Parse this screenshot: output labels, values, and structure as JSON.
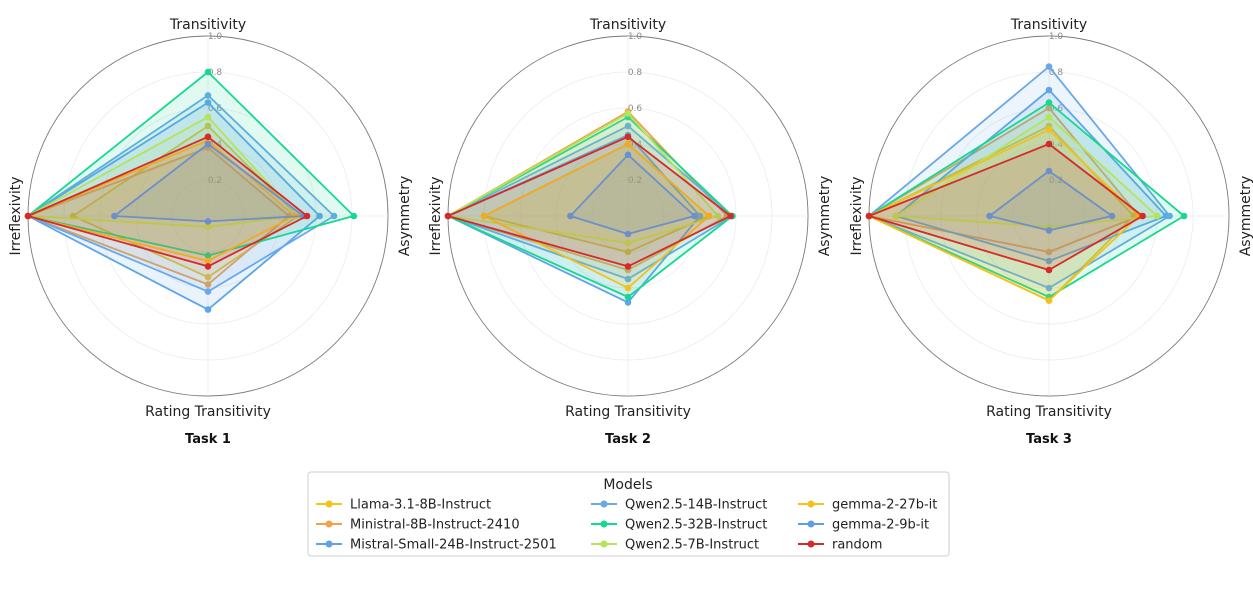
{
  "chart_data": {
    "type": "radar",
    "axes": [
      "Transitivity",
      "Asymmetry",
      "Rating Transitivity",
      "Irreflexivity"
    ],
    "rlim": [
      0,
      1.0
    ],
    "rticks": [
      "0.2",
      "0.4",
      "0.6",
      "0.8",
      "1.0"
    ],
    "legend_title": "Models",
    "models": [
      {
        "name": "Llama-3.1-8B-Instruct",
        "color": "#F0C419"
      },
      {
        "name": "Ministral-8B-Instruct-2410",
        "color": "#F5A04A"
      },
      {
        "name": "Mistral-Small-24B-Instruct-2501",
        "color": "#5DA5E8"
      },
      {
        "name": "Qwen2.5-14B-Instruct",
        "color": "#6AA8E8"
      },
      {
        "name": "Qwen2.5-32B-Instruct",
        "color": "#17D88F"
      },
      {
        "name": "Qwen2.5-7B-Instruct",
        "color": "#B5E35A"
      },
      {
        "name": "gemma-2-27b-it",
        "color": "#F3C01E"
      },
      {
        "name": "gemma-2-9b-it",
        "color": "#5E9FE3"
      },
      {
        "name": "random",
        "color": "#D62A2A"
      }
    ],
    "tasks": [
      {
        "title": "Task 1",
        "values": {
          "Llama-3.1-8B-Instruct": [
            0.5,
            0.5,
            0.34,
            0.75
          ],
          "Ministral-8B-Instruct-2410": [
            0.38,
            0.45,
            0.38,
            1.0
          ],
          "Mistral-Small-24B-Instruct-2501": [
            0.63,
            0.62,
            0.52,
            1.0
          ],
          "Qwen2.5-14B-Instruct": [
            0.67,
            0.7,
            0.42,
            1.0
          ],
          "Qwen2.5-32B-Instruct": [
            0.8,
            0.81,
            0.22,
            1.0
          ],
          "Qwen2.5-7B-Instruct": [
            0.55,
            0.5,
            0.06,
            1.0
          ],
          "gemma-2-27b-it": [
            0.42,
            0.48,
            0.25,
            1.0
          ],
          "gemma-2-9b-it": [
            0.4,
            0.53,
            0.03,
            0.52
          ],
          "random": [
            0.44,
            0.55,
            0.28,
            1.0
          ]
        }
      },
      {
        "title": "Task 2",
        "values": {
          "Llama-3.1-8B-Instruct": [
            0.4,
            0.45,
            0.2,
            0.8
          ],
          "Ministral-8B-Instruct-2410": [
            0.58,
            0.55,
            0.3,
            1.0
          ],
          "Mistral-Small-24B-Instruct-2501": [
            0.45,
            0.4,
            0.48,
            1.0
          ],
          "Qwen2.5-14B-Instruct": [
            0.5,
            0.58,
            0.35,
            1.0
          ],
          "Qwen2.5-32B-Instruct": [
            0.55,
            0.58,
            0.45,
            1.0
          ],
          "Qwen2.5-7B-Instruct": [
            0.57,
            0.5,
            0.15,
            1.0
          ],
          "gemma-2-27b-it": [
            0.4,
            0.45,
            0.4,
            0.8
          ],
          "gemma-2-9b-it": [
            0.34,
            0.37,
            0.1,
            0.32
          ],
          "random": [
            0.44,
            0.57,
            0.28,
            1.0
          ]
        }
      },
      {
        "title": "Task 3",
        "values": {
          "Llama-3.1-8B-Instruct": [
            0.5,
            0.47,
            0.47,
            1.0
          ],
          "Ministral-8B-Instruct-2410": [
            0.6,
            0.5,
            0.2,
            1.0
          ],
          "Mistral-Small-24B-Instruct-2501": [
            0.7,
            0.65,
            0.25,
            0.85
          ],
          "Qwen2.5-14B-Instruct": [
            0.83,
            0.67,
            0.4,
            1.0
          ],
          "Qwen2.5-32B-Instruct": [
            0.63,
            0.75,
            0.45,
            1.0
          ],
          "Qwen2.5-7B-Instruct": [
            0.55,
            0.6,
            0.06,
            0.85
          ],
          "gemma-2-27b-it": [
            0.48,
            0.5,
            0.47,
            1.0
          ],
          "gemma-2-9b-it": [
            0.25,
            0.35,
            0.08,
            0.33
          ],
          "random": [
            0.4,
            0.52,
            0.3,
            1.0
          ]
        }
      }
    ]
  }
}
